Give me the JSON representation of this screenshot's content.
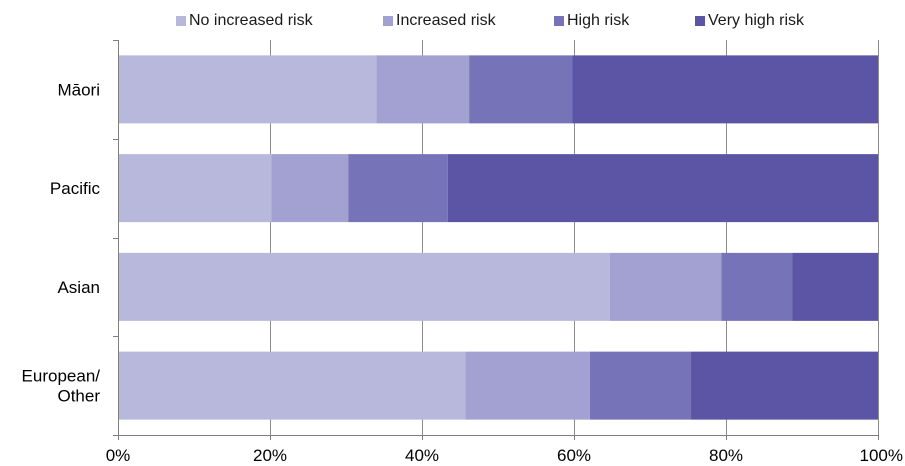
{
  "chart_data": {
    "type": "bar",
    "orientation": "horizontal",
    "stacked": "percent",
    "categories": [
      "Māori",
      "Pacific",
      "Asian",
      "European/\nOther"
    ],
    "series": [
      {
        "name": "No increased risk",
        "color": "#b8b8dc",
        "values": [
          34.0,
          20.2,
          64.7,
          45.7
        ]
      },
      {
        "name": "Increased risk",
        "color": "#a3a1d1",
        "values": [
          12.2,
          10.1,
          14.7,
          16.4
        ]
      },
      {
        "name": "High risk",
        "color": "#7773b8",
        "values": [
          13.6,
          13.1,
          9.3,
          13.3
        ]
      },
      {
        "name": "Very high risk",
        "color": "#5c55a6",
        "values": [
          40.2,
          56.6,
          11.3,
          24.6
        ]
      }
    ],
    "x_ticks": [
      "0%",
      "20%",
      "40%",
      "60%",
      "80%",
      "100%"
    ],
    "xlim": [
      0,
      100
    ],
    "grid": true,
    "legend_position": "top"
  }
}
